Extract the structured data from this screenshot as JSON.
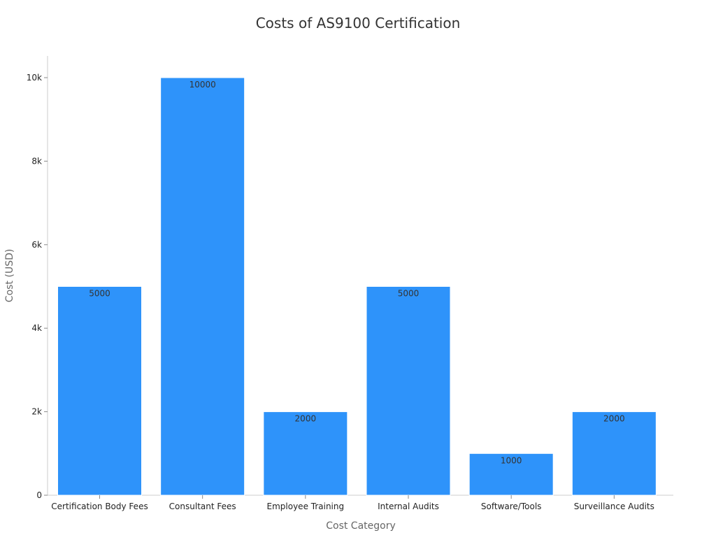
{
  "chart_data": {
    "type": "bar",
    "title": "Costs of AS9100 Certification",
    "xlabel": "Cost Category",
    "ylabel": "Cost (USD)",
    "categories": [
      "Certification Body Fees",
      "Consultant Fees",
      "Employee Training",
      "Internal Audits",
      "Software/Tools",
      "Surveillance Audits"
    ],
    "values": [
      5000,
      10000,
      2000,
      5000,
      1000,
      2000
    ],
    "data_labels": [
      "5000",
      "10000",
      "2000",
      "5000",
      "1000",
      "2000"
    ],
    "ylim": [
      0,
      10500
    ],
    "yticks": [
      0,
      2000,
      4000,
      6000,
      8000,
      10000
    ],
    "ytick_labels": [
      "0",
      "2k",
      "4k",
      "6k",
      "8k",
      "10k"
    ],
    "grid": false,
    "legend": "none",
    "colors": {
      "bar": "#2e93fa",
      "bar_edge": "#ffffff",
      "axis": "#cccccc",
      "title_text": "#333333",
      "axis_label_text": "#666666",
      "tick_text": "#222222",
      "value_label_text": "#333333"
    }
  }
}
